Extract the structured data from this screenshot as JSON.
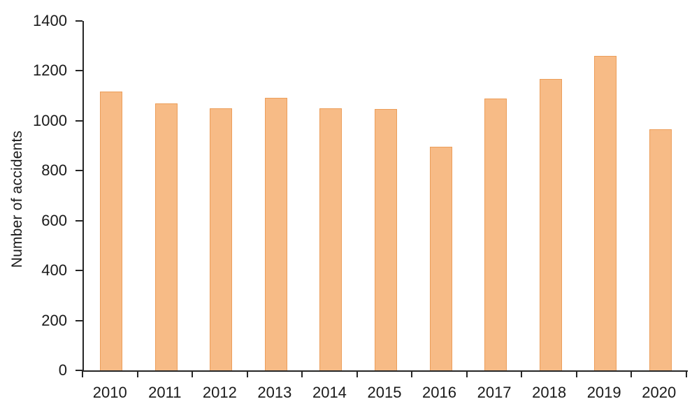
{
  "chart_data": {
    "type": "bar",
    "title": "",
    "xlabel": "",
    "ylabel": "Number of accidents",
    "categories": [
      "2010",
      "2011",
      "2012",
      "2013",
      "2014",
      "2015",
      "2016",
      "2017",
      "2018",
      "2019",
      "2020"
    ],
    "values": [
      1116,
      1071,
      1049,
      1093,
      1049,
      1046,
      897,
      1088,
      1169,
      1259,
      965
    ],
    "ylim": [
      0,
      1400
    ],
    "yticks": [
      0,
      200,
      400,
      600,
      800,
      1000,
      1200,
      1400
    ],
    "grid": false,
    "legend": "none",
    "colors": {
      "bar_fill": "#F7BB86",
      "bar_border": "#EC9E5A",
      "axis": "#262626",
      "text": "#1a1a1a",
      "background": "#ffffff"
    }
  }
}
